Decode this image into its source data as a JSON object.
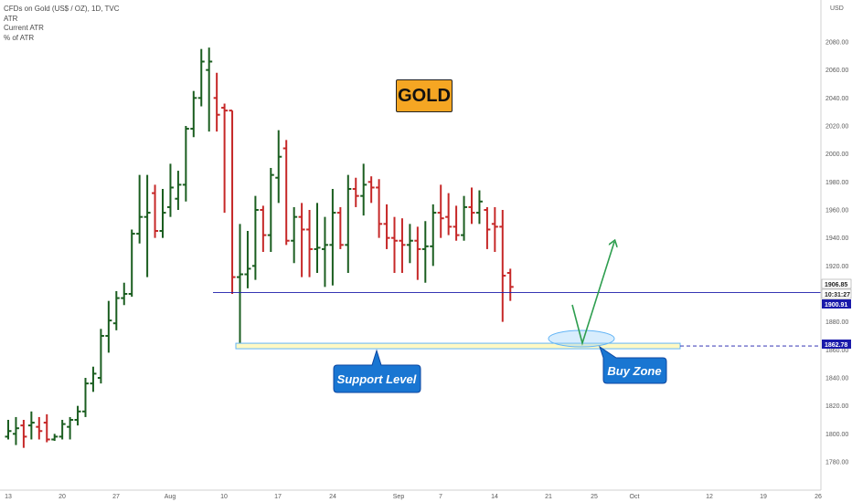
{
  "legend": {
    "symbol": "CFDs on Gold (US$ / OZ), 1D, TVC",
    "indicator": "ATR",
    "line2": "Current ATR",
    "line3": "% of ATR"
  },
  "currency_label": "USD",
  "title_box": "GOLD",
  "annotations": {
    "support_label": "Support Level",
    "buy_label": "Buy Zone"
  },
  "price_tags": {
    "current_price": "1906.85",
    "countdown": "10:31:27",
    "resistance_line": "1900.91",
    "support_line": "1862.78"
  },
  "colors": {
    "up": "#1b5e20",
    "down": "#c62828",
    "horizontal_line": "#1a1aaa",
    "support_zone_fill": "#fff9c4",
    "support_zone_border": "#64b5f6",
    "callout": "#1976d2",
    "arrow": "#2e9e4f",
    "title_box": "#f5a623"
  },
  "chart_data": {
    "type": "ohlc",
    "title": "CFDs on Gold (US$ / OZ), 1D, TVC",
    "y_axis": {
      "range": [
        1770,
        2100
      ],
      "ticks": [
        1780,
        1800,
        1820,
        1840,
        1860,
        1880,
        1900,
        1920,
        1940,
        1960,
        1980,
        2000,
        2020,
        2040,
        2060,
        2080
      ]
    },
    "x_axis": {
      "ticks": [
        "13",
        "20",
        "27",
        "Aug",
        "10",
        "17",
        "24",
        "Sep",
        "7",
        "14",
        "21",
        "25",
        "Oct",
        "12",
        "19",
        "26"
      ]
    },
    "series": [
      {
        "name": "CFDs on Gold (US$ / OZ)",
        "bars": [
          {
            "o": 1798,
            "h": 1810,
            "l": 1796,
            "c": 1802
          },
          {
            "o": 1800,
            "h": 1812,
            "l": 1792,
            "c": 1804
          },
          {
            "o": 1806,
            "h": 1810,
            "l": 1790,
            "c": 1798
          },
          {
            "o": 1806,
            "h": 1816,
            "l": 1796,
            "c": 1808
          },
          {
            "o": 1805,
            "h": 1812,
            "l": 1796,
            "c": 1802
          },
          {
            "o": 1808,
            "h": 1814,
            "l": 1794,
            "c": 1796
          },
          {
            "o": 1796,
            "h": 1800,
            "l": 1795,
            "c": 1798
          },
          {
            "o": 1798,
            "h": 1810,
            "l": 1796,
            "c": 1807
          },
          {
            "o": 1805,
            "h": 1812,
            "l": 1796,
            "c": 1810
          },
          {
            "o": 1810,
            "h": 1820,
            "l": 1806,
            "c": 1816
          },
          {
            "o": 1816,
            "h": 1840,
            "l": 1812,
            "c": 1836
          },
          {
            "o": 1836,
            "h": 1848,
            "l": 1830,
            "c": 1843
          },
          {
            "o": 1840,
            "h": 1875,
            "l": 1836,
            "c": 1870
          },
          {
            "o": 1870,
            "h": 1895,
            "l": 1858,
            "c": 1881
          },
          {
            "o": 1879,
            "h": 1902,
            "l": 1874,
            "c": 1897
          },
          {
            "o": 1897,
            "h": 1908,
            "l": 1892,
            "c": 1900
          },
          {
            "o": 1900,
            "h": 1946,
            "l": 1898,
            "c": 1943
          },
          {
            "o": 1943,
            "h": 1985,
            "l": 1936,
            "c": 1955
          },
          {
            "o": 1955,
            "h": 1985,
            "l": 1912,
            "c": 1958
          },
          {
            "o": 1972,
            "h": 1978,
            "l": 1940,
            "c": 1945
          },
          {
            "o": 1945,
            "h": 1975,
            "l": 1940,
            "c": 1958
          },
          {
            "o": 1962,
            "h": 1993,
            "l": 1955,
            "c": 1976
          },
          {
            "o": 1968,
            "h": 1988,
            "l": 1960,
            "c": 1978
          },
          {
            "o": 1978,
            "h": 2020,
            "l": 1966,
            "c": 2018
          },
          {
            "o": 2018,
            "h": 2045,
            "l": 2012,
            "c": 2040
          },
          {
            "o": 2040,
            "h": 2075,
            "l": 2034,
            "c": 2066
          },
          {
            "o": 2060,
            "h": 2076,
            "l": 2016,
            "c": 2066
          },
          {
            "o": 2040,
            "h": 2058,
            "l": 2016,
            "c": 2028
          },
          {
            "o": 2033,
            "h": 2036,
            "l": 1958,
            "c": 2031
          },
          {
            "o": 2031,
            "h": 2031,
            "l": 1900,
            "c": 1912
          },
          {
            "o": 1912,
            "h": 1950,
            "l": 1862,
            "c": 1914
          },
          {
            "o": 1914,
            "h": 1945,
            "l": 1904,
            "c": 1918
          },
          {
            "o": 1920,
            "h": 1970,
            "l": 1910,
            "c": 1960
          },
          {
            "o": 1960,
            "h": 1963,
            "l": 1930,
            "c": 1942
          },
          {
            "o": 1942,
            "h": 1990,
            "l": 1930,
            "c": 1985
          },
          {
            "o": 1983,
            "h": 2017,
            "l": 1965,
            "c": 1998
          },
          {
            "o": 2004,
            "h": 2010,
            "l": 1935,
            "c": 1938
          },
          {
            "o": 1938,
            "h": 1962,
            "l": 1922,
            "c": 1955
          },
          {
            "o": 1955,
            "h": 1965,
            "l": 1912,
            "c": 1946
          },
          {
            "o": 1946,
            "h": 1960,
            "l": 1912,
            "c": 1932
          },
          {
            "o": 1932,
            "h": 1965,
            "l": 1915,
            "c": 1933
          },
          {
            "o": 1932,
            "h": 1955,
            "l": 1905,
            "c": 1935
          },
          {
            "o": 1935,
            "h": 1975,
            "l": 1906,
            "c": 1958
          },
          {
            "o": 1958,
            "h": 1962,
            "l": 1932,
            "c": 1935
          },
          {
            "o": 1935,
            "h": 1985,
            "l": 1915,
            "c": 1975
          },
          {
            "o": 1975,
            "h": 1983,
            "l": 1962,
            "c": 1970
          },
          {
            "o": 1970,
            "h": 1993,
            "l": 1956,
            "c": 1978
          },
          {
            "o": 1980,
            "h": 1984,
            "l": 1965,
            "c": 1976
          },
          {
            "o": 1976,
            "h": 1982,
            "l": 1940,
            "c": 1950
          },
          {
            "o": 1950,
            "h": 1964,
            "l": 1932,
            "c": 1940
          },
          {
            "o": 1940,
            "h": 1955,
            "l": 1915,
            "c": 1938
          },
          {
            "o": 1938,
            "h": 1954,
            "l": 1915,
            "c": 1935
          },
          {
            "o": 1935,
            "h": 1950,
            "l": 1922,
            "c": 1938
          },
          {
            "o": 1938,
            "h": 1948,
            "l": 1910,
            "c": 1932
          },
          {
            "o": 1932,
            "h": 1952,
            "l": 1908,
            "c": 1934
          },
          {
            "o": 1934,
            "h": 1964,
            "l": 1920,
            "c": 1958
          },
          {
            "o": 1958,
            "h": 1978,
            "l": 1940,
            "c": 1954
          },
          {
            "o": 1955,
            "h": 1972,
            "l": 1942,
            "c": 1948
          },
          {
            "o": 1948,
            "h": 1963,
            "l": 1938,
            "c": 1942
          },
          {
            "o": 1942,
            "h": 1970,
            "l": 1938,
            "c": 1962
          },
          {
            "o": 1962,
            "h": 1976,
            "l": 1950,
            "c": 1958
          },
          {
            "o": 1958,
            "h": 1974,
            "l": 1950,
            "c": 1966
          },
          {
            "o": 1960,
            "h": 1962,
            "l": 1932,
            "c": 1946
          },
          {
            "o": 1950,
            "h": 1962,
            "l": 1930,
            "c": 1948
          },
          {
            "o": 1948,
            "h": 1960,
            "l": 1880,
            "c": 1913
          },
          {
            "o": 1915,
            "h": 1918,
            "l": 1895,
            "c": 1905
          }
        ]
      }
    ],
    "horizontal_lines": [
      1900.91,
      1862.78
    ]
  }
}
